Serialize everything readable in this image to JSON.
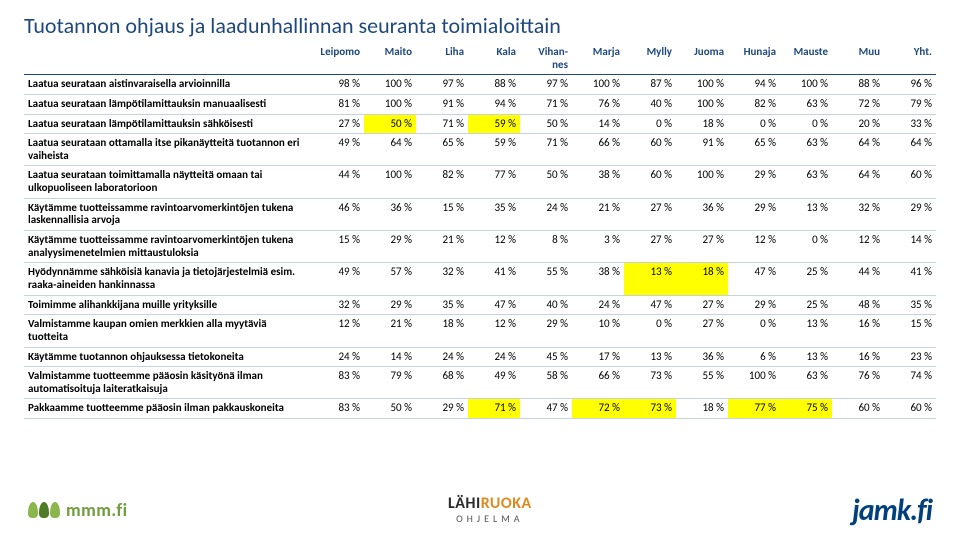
{
  "title": "Tuotannon ohjaus ja laadunhallinnan seuranta toimialoittain",
  "columns": [
    "Leipomo",
    "Maito",
    "Liha",
    "Kala",
    "Vihan-\nnes",
    "Marja",
    "Mylly",
    "Juoma",
    "Hunaja",
    "Mauste",
    "Muu",
    "Yht."
  ],
  "highlight_color": "#ffff00",
  "header_color": "#1f497d",
  "rows": [
    {
      "label": "Laatua seurataan aistinvaraisella arvioinnilla",
      "vals": [
        "98 %",
        "100 %",
        "97 %",
        "88 %",
        "97 %",
        "100 %",
        "87 %",
        "100 %",
        "94 %",
        "100 %",
        "88 %",
        "96 %"
      ],
      "hl": []
    },
    {
      "label": "Laatua seurataan lämpötilamittauksin manuaalisesti",
      "vals": [
        "81 %",
        "100 %",
        "91 %",
        "94 %",
        "71 %",
        "76 %",
        "40 %",
        "100 %",
        "82 %",
        "63 %",
        "72 %",
        "79 %"
      ],
      "hl": []
    },
    {
      "label": "Laatua seurataan lämpötilamittauksin sähköisesti",
      "vals": [
        "27 %",
        "50 %",
        "71 %",
        "59 %",
        "50 %",
        "14 %",
        "0 %",
        "18 %",
        "0 %",
        "0 %",
        "20 %",
        "33 %"
      ],
      "hl": [
        1,
        3
      ]
    },
    {
      "label": "Laatua seurataan ottamalla itse pikanäytteitä tuotannon eri vaiheista",
      "vals": [
        "49 %",
        "64 %",
        "65 %",
        "59 %",
        "71 %",
        "66 %",
        "60 %",
        "91 %",
        "65 %",
        "63 %",
        "64 %",
        "64 %"
      ],
      "hl": []
    },
    {
      "label": "Laatua seurataan toimittamalla näytteitä omaan tai ulkopuoliseen laboratorioon",
      "vals": [
        "44 %",
        "100 %",
        "82 %",
        "77 %",
        "50 %",
        "38 %",
        "60 %",
        "100 %",
        "29 %",
        "63 %",
        "64 %",
        "60 %"
      ],
      "hl": []
    },
    {
      "label": "Käytämme tuotteissamme ravintoarvomerkintöjen tukena laskennallisia arvoja",
      "vals": [
        "46 %",
        "36 %",
        "15 %",
        "35 %",
        "24 %",
        "21 %",
        "27 %",
        "36 %",
        "29 %",
        "13 %",
        "32 %",
        "29 %"
      ],
      "hl": []
    },
    {
      "label": "Käytämme tuotteissamme ravintoarvomerkintöjen tukena analyysimenetelmien mittaustuloksia",
      "vals": [
        "15 %",
        "29 %",
        "21 %",
        "12 %",
        "8 %",
        "3 %",
        "27 %",
        "27 %",
        "12 %",
        "0 %",
        "12 %",
        "14 %"
      ],
      "hl": []
    },
    {
      "label": "Hyödynnämme sähköisiä kanavia ja tietojärjestelmiä esim. raaka-aineiden hankinnassa",
      "vals": [
        "49 %",
        "57 %",
        "32 %",
        "41 %",
        "55 %",
        "38 %",
        "13 %",
        "18 %",
        "47 %",
        "25 %",
        "44 %",
        "41 %"
      ],
      "hl": [
        6,
        7
      ]
    },
    {
      "label": "Toimimme alihankkijana muille yrityksille",
      "vals": [
        "32 %",
        "29 %",
        "35 %",
        "47 %",
        "40 %",
        "24 %",
        "47 %",
        "27 %",
        "29 %",
        "25 %",
        "48 %",
        "35 %"
      ],
      "hl": []
    },
    {
      "label": "Valmistamme kaupan omien merkkien alla myytäviä tuotteita",
      "vals": [
        "12 %",
        "21 %",
        "18 %",
        "12 %",
        "29 %",
        "10 %",
        "0 %",
        "27 %",
        "0 %",
        "13 %",
        "16 %",
        "15 %"
      ],
      "hl": []
    },
    {
      "label": "Käytämme tuotannon ohjauksessa tietokoneita",
      "vals": [
        "24 %",
        "14 %",
        "24 %",
        "24 %",
        "45 %",
        "17 %",
        "13 %",
        "36 %",
        "6 %",
        "13 %",
        "16 %",
        "23 %"
      ],
      "hl": []
    },
    {
      "label": "Valmistamme tuotteemme pääosin käsityönä ilman automatisoituja laiteratkaisuja",
      "vals": [
        "83 %",
        "79 %",
        "68 %",
        "49 %",
        "58 %",
        "66 %",
        "73 %",
        "55 %",
        "100 %",
        "63 %",
        "76 %",
        "74 %"
      ],
      "hl": []
    },
    {
      "label": "Pakkaamme tuotteemme pääosin ilman pakkauskoneita",
      "vals": [
        "83 %",
        "50 %",
        "29 %",
        "71 %",
        "47 %",
        "72 %",
        "73 %",
        "18 %",
        "77 %",
        "75 %",
        "60 %",
        "60 %"
      ],
      "hl": [
        3,
        5,
        6,
        8,
        9
      ]
    }
  ],
  "footer": {
    "mmm": "mmm.fi",
    "lahi_top_1": "LÄHI",
    "lahi_top_2": "RUOKA",
    "lahi_sub": "OHJELMA",
    "jamk": "jamk.fi"
  }
}
